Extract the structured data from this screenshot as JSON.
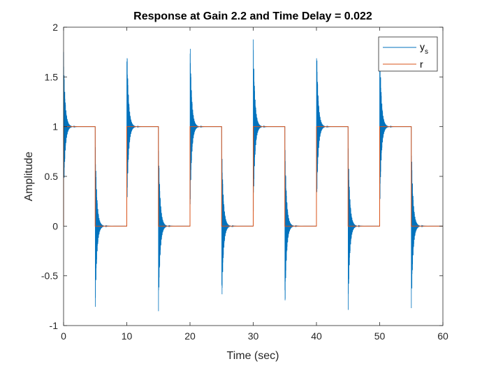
{
  "chart_data": {
    "type": "line",
    "title": "Response at Gain 2.2 and Time Delay = 0.022",
    "xlabel": "Time (sec)",
    "ylabel": "Amplitude",
    "xlim": [
      0,
      60
    ],
    "ylim": [
      -1,
      2
    ],
    "xticks": [
      0,
      10,
      20,
      30,
      40,
      50,
      60
    ],
    "yticks": [
      -1,
      -0.5,
      0,
      0.5,
      1,
      1.5,
      2
    ],
    "xtick_labels": [
      "0",
      "10",
      "20",
      "30",
      "40",
      "50",
      "60"
    ],
    "ytick_labels": [
      "-1",
      "-0.5",
      "0",
      "0.5",
      "1",
      "1.5",
      "2"
    ],
    "grid": false,
    "legend_position": "top-right",
    "legend": {
      "ys_base": "y",
      "ys_sub": "s",
      "r": "r"
    },
    "square_wave": {
      "period": 10,
      "high": 1,
      "low": 0,
      "edges": [
        0,
        5,
        10,
        15,
        20,
        25,
        30,
        35,
        40,
        45,
        50,
        55,
        60
      ]
    },
    "oscillation": {
      "rise_peak": 1.92,
      "fall_trough": -0.92,
      "first_rise_peak": 1.75,
      "settle_time": 1.3
    },
    "series": [
      {
        "name": "y_s",
        "color": "#0072BD"
      },
      {
        "name": "r",
        "color": "#D95319"
      }
    ]
  }
}
